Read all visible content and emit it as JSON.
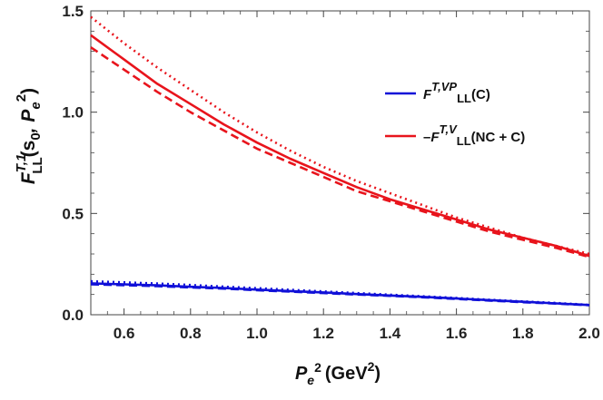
{
  "chart_data": {
    "type": "line",
    "xlim": [
      0.5,
      2.0
    ],
    "ylim": [
      0,
      1.5
    ],
    "x_ticks": [
      "0.6",
      "0.8",
      "1.0",
      "1.2",
      "1.4",
      "1.6",
      "1.8",
      "2.0"
    ],
    "y_ticks": [
      "0.0",
      "0.5",
      "1.0",
      "1.5"
    ],
    "xlabel": {
      "var": "P",
      "sub": "e",
      "sup": "2",
      "unit_open": "(GeV",
      "unit_sup": "2",
      "unit_close": ")"
    },
    "ylabel": {
      "var": "F",
      "sup": "T,1",
      "sub": "LL",
      "args_open": "(s",
      "args_sub": "0",
      "args_sep": ", P",
      "args_sub2": "e",
      "args_sup": "2",
      "args_close": ")"
    },
    "legend_position": "right",
    "grid": false,
    "series": [
      {
        "legend": {
          "pre": "",
          "F": "F",
          "sup": "T,VP",
          "sub": "LL",
          "arg": "(C)"
        },
        "color": "#1010d8",
        "x": [
          0.5,
          0.6,
          0.7,
          0.8,
          0.9,
          1.0,
          1.1,
          1.2,
          1.3,
          1.4,
          1.5,
          1.6,
          1.7,
          1.8,
          1.9,
          2.0
        ],
        "variants": [
          {
            "style": "solid",
            "y": [
              0.155,
              0.15,
              0.145,
              0.138,
              0.132,
              0.124,
              0.117,
              0.11,
              0.102,
              0.095,
              0.088,
              0.08,
              0.072,
              0.064,
              0.056,
              0.048
            ]
          },
          {
            "style": "dashed",
            "y": [
              0.15,
              0.146,
              0.141,
              0.135,
              0.129,
              0.121,
              0.114,
              0.107,
              0.1,
              0.093,
              0.086,
              0.078,
              0.07,
              0.062,
              0.055,
              0.047
            ]
          },
          {
            "style": "dotted",
            "y": [
              0.165,
              0.16,
              0.154,
              0.147,
              0.139,
              0.131,
              0.123,
              0.115,
              0.107,
              0.099,
              0.091,
              0.083,
              0.074,
              0.066,
              0.058,
              0.049
            ]
          }
        ]
      },
      {
        "legend": {
          "pre": "–",
          "F": "F",
          "sup": "T,V",
          "sub": "LL",
          "arg": "(NC + C)"
        },
        "color": "#e8141c",
        "x": [
          0.5,
          0.6,
          0.7,
          0.8,
          0.9,
          1.0,
          1.1,
          1.2,
          1.3,
          1.4,
          1.5,
          1.6,
          1.7,
          1.8,
          1.9,
          2.0
        ],
        "variants": [
          {
            "style": "solid",
            "y": [
              1.38,
              1.26,
              1.14,
              1.04,
              0.94,
              0.85,
              0.77,
              0.7,
              0.63,
              0.57,
              0.52,
              0.47,
              0.42,
              0.38,
              0.34,
              0.29
            ]
          },
          {
            "style": "dashed",
            "y": [
              1.32,
              1.21,
              1.1,
              1.0,
              0.91,
              0.82,
              0.75,
              0.68,
              0.61,
              0.56,
              0.51,
              0.46,
              0.41,
              0.37,
              0.33,
              0.285
            ]
          },
          {
            "style": "dotted",
            "y": [
              1.47,
              1.34,
              1.22,
              1.11,
              1.0,
              0.9,
              0.81,
              0.73,
              0.66,
              0.6,
              0.54,
              0.48,
              0.43,
              0.38,
              0.34,
              0.3
            ]
          }
        ]
      }
    ]
  }
}
